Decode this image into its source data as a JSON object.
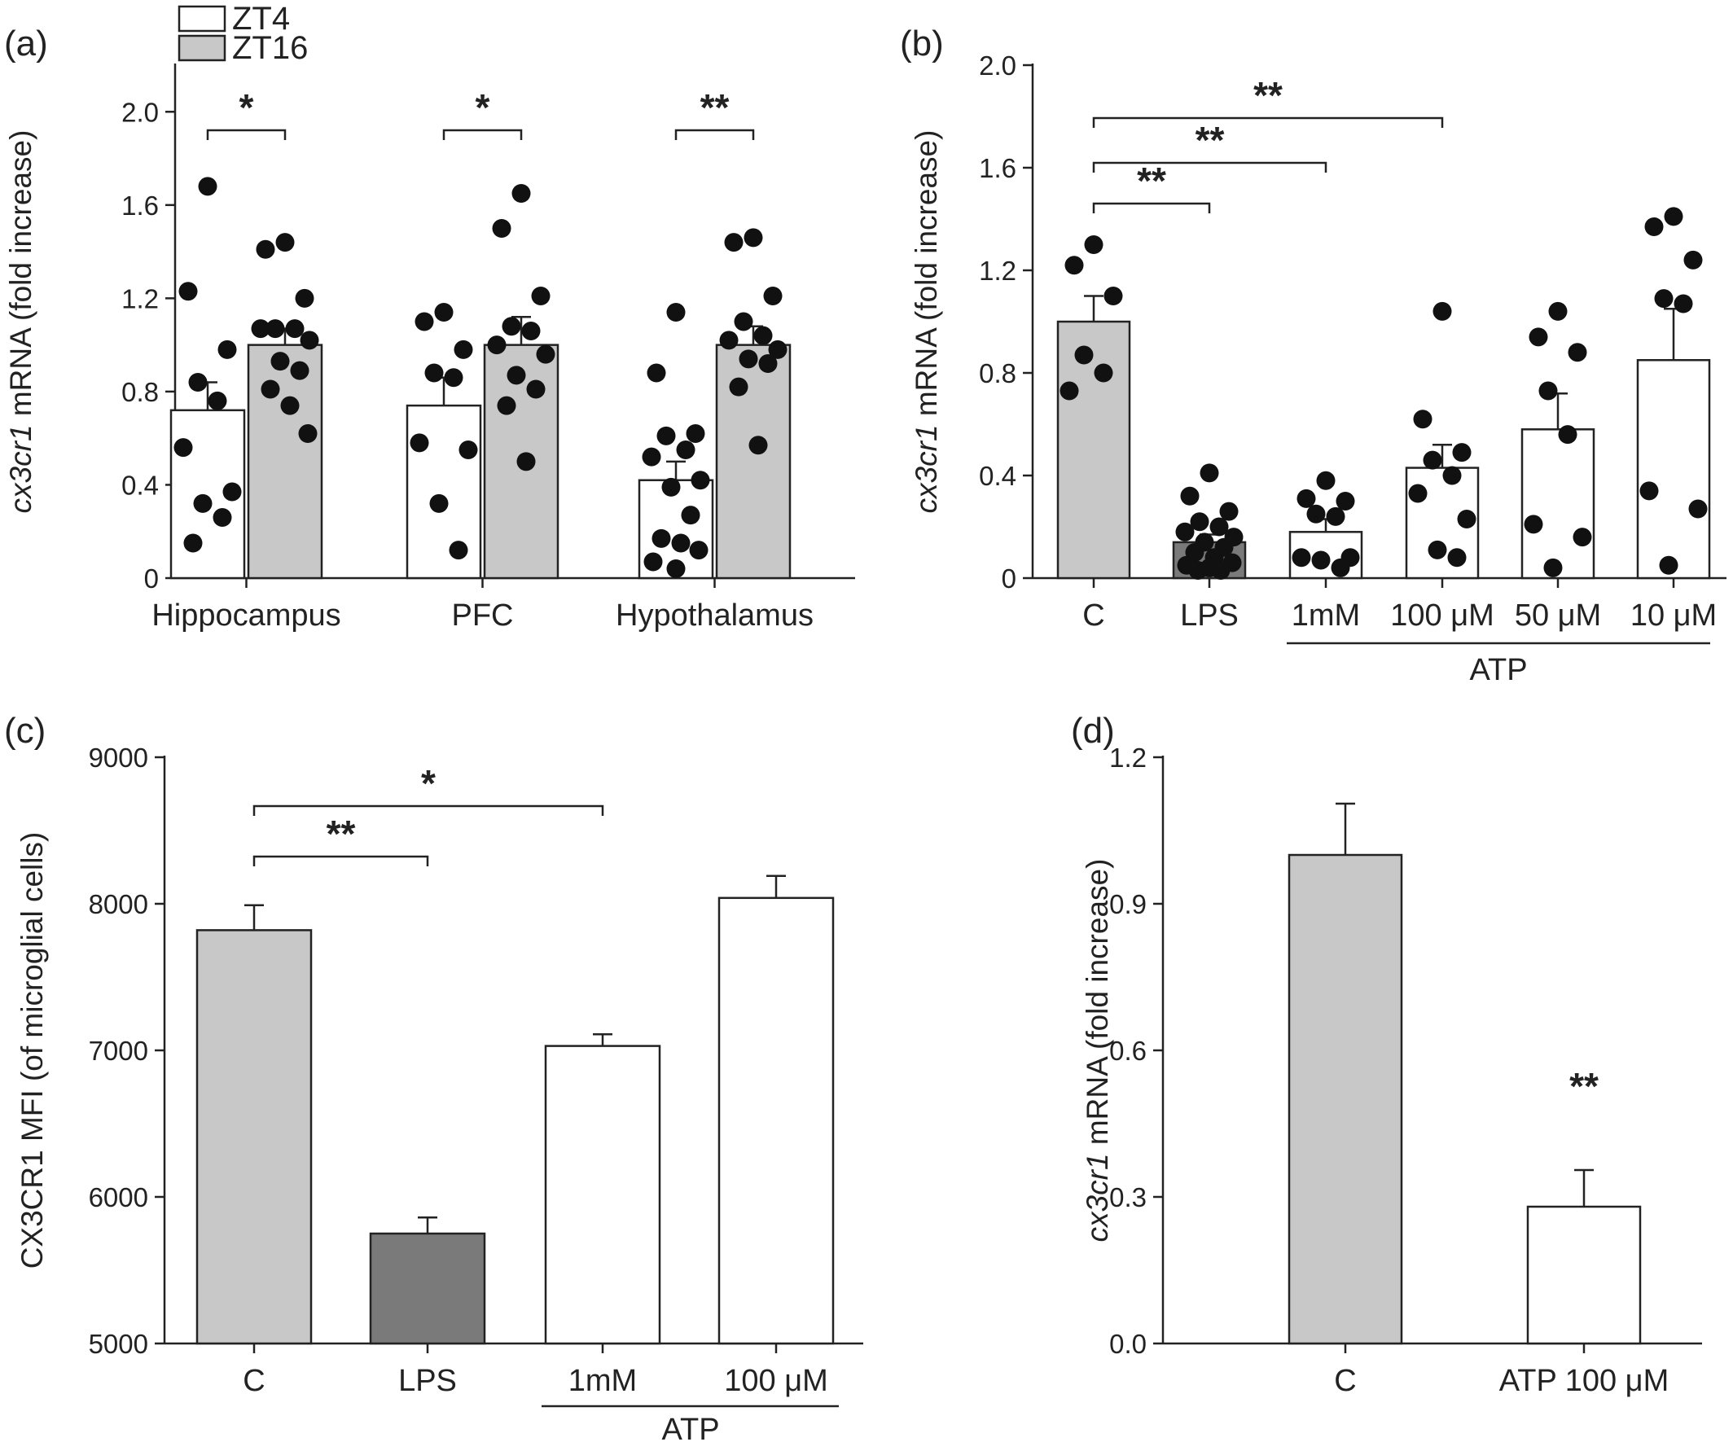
{
  "chart_data": [
    {
      "panel": "(a)",
      "type": "bar",
      "categories": [
        "Hippocampus",
        "PFC",
        "Hypothalamus"
      ],
      "ylabel_italic": "cx3cr1",
      "ylabel_rest": " mRNA (fold increase)",
      "ylim": [
        0,
        2.2
      ],
      "yticks": [
        "0",
        "0.4",
        "0.8",
        "1.2",
        "1.6",
        "2.0"
      ],
      "legend": {
        "position": "top-left",
        "entries": [
          "ZT4",
          "ZT16"
        ]
      },
      "series": [
        {
          "name": "ZT4",
          "color": "#ffffff",
          "values": [
            0.72,
            0.74,
            0.42
          ],
          "errors": [
            0.12,
            0.12,
            0.08
          ],
          "points": [
            [
              1.68,
              1.23,
              0.98,
              0.84,
              0.76,
              0.56,
              0.37,
              0.32,
              0.26,
              0.15
            ],
            [
              1.14,
              1.1,
              0.98,
              0.88,
              0.86,
              0.58,
              0.55,
              0.32,
              0.12
            ],
            [
              1.14,
              0.88,
              0.62,
              0.61,
              0.55,
              0.52,
              0.42,
              0.39,
              0.27,
              0.17,
              0.15,
              0.12,
              0.07,
              0.04
            ]
          ]
        },
        {
          "name": "ZT16",
          "color": "#c8c8c8",
          "values": [
            1.0,
            1.0,
            1.0
          ],
          "errors": [
            0.07,
            0.12,
            0.08
          ],
          "points": [
            [
              1.44,
              1.41,
              1.2,
              1.07,
              1.07,
              1.07,
              1.02,
              0.93,
              0.89,
              0.81,
              0.74,
              0.62
            ],
            [
              1.65,
              1.5,
              1.21,
              1.08,
              1.06,
              1.0,
              0.96,
              0.87,
              0.81,
              0.74,
              0.5
            ],
            [
              1.46,
              1.44,
              1.21,
              1.1,
              1.04,
              1.02,
              0.98,
              0.94,
              0.92,
              0.82,
              0.57
            ]
          ]
        }
      ],
      "significance": [
        {
          "between": [
            0,
            0
          ],
          "label": "*"
        },
        {
          "between": [
            1,
            1
          ],
          "label": "*"
        },
        {
          "between": [
            2,
            2
          ],
          "label": "**"
        }
      ]
    },
    {
      "panel": "(b)",
      "type": "bar",
      "categories": [
        "C",
        "LPS",
        "1mM",
        "100 μM",
        "50 μM",
        "10 μM"
      ],
      "group_label": "ATP",
      "ylabel_italic": "cx3cr1",
      "ylabel_rest": " mRNA (fold increase)",
      "ylim": [
        0,
        2.0
      ],
      "yticks": [
        "0",
        "0.4",
        "0.8",
        "1.2",
        "1.6",
        "2.0"
      ],
      "values": [
        1.0,
        0.14,
        0.18,
        0.43,
        0.58,
        0.85
      ],
      "errors": [
        0.1,
        0.03,
        0.05,
        0.09,
        0.14,
        0.2
      ],
      "colors": [
        "#c8c8c8",
        "#7a7a7a",
        "#ffffff",
        "#ffffff",
        "#ffffff",
        "#ffffff"
      ],
      "points": [
        [
          1.3,
          1.22,
          1.1,
          0.87,
          0.8,
          0.73
        ],
        [
          0.41,
          0.32,
          0.26,
          0.22,
          0.2,
          0.18,
          0.16,
          0.14,
          0.12,
          0.1,
          0.08,
          0.06,
          0.05,
          0.04,
          0.03,
          0.03
        ],
        [
          0.38,
          0.31,
          0.3,
          0.25,
          0.24,
          0.08,
          0.08,
          0.07,
          0.04
        ],
        [
          1.04,
          0.62,
          0.49,
          0.46,
          0.4,
          0.33,
          0.23,
          0.11,
          0.08
        ],
        [
          1.04,
          0.94,
          0.88,
          0.73,
          0.56,
          0.21,
          0.16,
          0.04
        ],
        [
          1.41,
          1.37,
          1.24,
          1.09,
          1.07,
          0.34,
          0.27,
          0.05
        ]
      ],
      "significance": [
        {
          "between": [
            0,
            1
          ],
          "label": "**"
        },
        {
          "between": [
            0,
            2
          ],
          "label": "**"
        },
        {
          "between": [
            0,
            3
          ],
          "label": "**"
        }
      ]
    },
    {
      "panel": "(c)",
      "type": "bar",
      "categories": [
        "C",
        "LPS",
        "1mM",
        "100 μM"
      ],
      "group_label": "ATP",
      "ylabel": "CX3CR1 MFI (of microglial cells)",
      "ylim": [
        5000,
        9000
      ],
      "yticks": [
        "5000",
        "6000",
        "7000",
        "8000",
        "9000"
      ],
      "values": [
        7820,
        5750,
        7030,
        8040
      ],
      "errors": [
        170,
        110,
        80,
        150
      ],
      "colors": [
        "#c8c8c8",
        "#7a7a7a",
        "#ffffff",
        "#ffffff"
      ],
      "significance": [
        {
          "between": [
            0,
            1
          ],
          "label": "**"
        },
        {
          "between": [
            0,
            2
          ],
          "label": "*"
        }
      ]
    },
    {
      "panel": "(d)",
      "type": "bar",
      "categories": [
        "C",
        "ATP 100 μM"
      ],
      "ylabel_italic": "cx3cr1",
      "ylabel_rest": " mRNA (fold increase)",
      "ylim": [
        0,
        1.2
      ],
      "yticks": [
        "0.0",
        "0.3",
        "0.6",
        "0.9",
        "1.2"
      ],
      "values": [
        1.0,
        0.28
      ],
      "errors": [
        0.105,
        0.075
      ],
      "colors": [
        "#c8c8c8",
        "#ffffff"
      ],
      "significance": [
        {
          "over": 1,
          "label": "**"
        }
      ]
    }
  ]
}
